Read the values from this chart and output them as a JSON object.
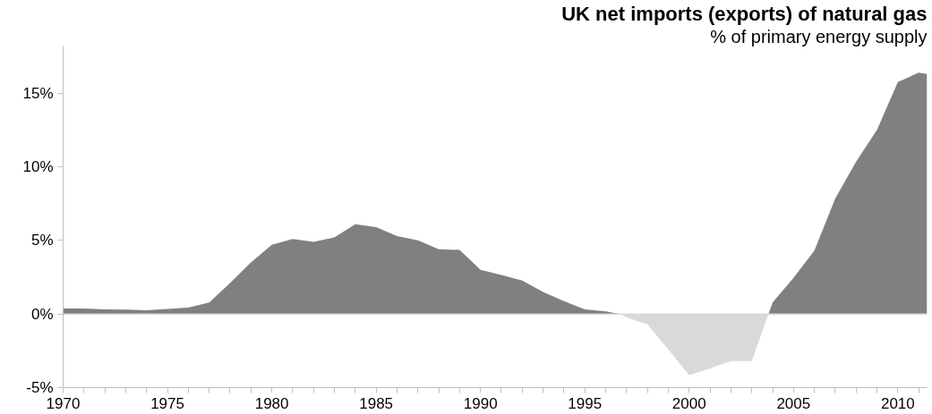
{
  "chart_data": {
    "type": "area",
    "title": "UK net imports (exports) of natural gas",
    "subtitle": "% of primary energy supply",
    "series": [
      {
        "color": "#808080",
        "x": [
          1970,
          1971,
          1972,
          1973,
          1974,
          1975,
          1976,
          1977,
          1978,
          1979,
          1980,
          1981,
          1982,
          1983,
          1984,
          1985,
          1986,
          1987,
          1988,
          1989,
          1990,
          1991,
          1992,
          1993,
          1994,
          1995,
          1996,
          1996.7,
          null,
          2003.8,
          2004,
          2005,
          2006,
          2007,
          2008,
          2009,
          2010,
          2011,
          2011.4
        ],
        "values": [
          0.37,
          0.37,
          0.32,
          0.3,
          0.26,
          0.35,
          0.43,
          0.78,
          2.1,
          3.5,
          4.7,
          5.1,
          4.9,
          5.2,
          6.1,
          5.9,
          5.3,
          5.0,
          4.4,
          4.35,
          3.0,
          2.65,
          2.27,
          1.5,
          0.87,
          0.32,
          0.17,
          0,
          null,
          0,
          0.78,
          2.45,
          4.3,
          7.85,
          10.35,
          12.5,
          15.75,
          16.4,
          16.3
        ]
      },
      {
        "color": "#d9d9d9",
        "x": [
          1996.7,
          1997,
          1998,
          1999,
          2000,
          2001,
          2002,
          2003,
          2003.8
        ],
        "values": [
          0,
          -0.24,
          -0.7,
          -2.4,
          -4.15,
          -3.7,
          -3.2,
          -3.2,
          0
        ]
      }
    ],
    "xlim": [
      1970,
      2011.4
    ],
    "ylim": [
      -5,
      18.2
    ],
    "xticks": [
      1970,
      {
        "value": 1971,
        "label": null
      },
      {
        "value": 1972,
        "label": null
      },
      {
        "value": 1973,
        "label": null
      },
      {
        "value": 1974,
        "label": null
      },
      1975,
      {
        "value": 1976,
        "label": null
      },
      {
        "value": 1977,
        "label": null
      },
      {
        "value": 1978,
        "label": null
      },
      {
        "value": 1979,
        "label": null
      },
      1980,
      {
        "value": 1981,
        "label": null
      },
      {
        "value": 1982,
        "label": null
      },
      {
        "value": 1983,
        "label": null
      },
      {
        "value": 1984,
        "label": null
      },
      1985,
      {
        "value": 1986,
        "label": null
      },
      {
        "value": 1987,
        "label": null
      },
      {
        "value": 1988,
        "label": null
      },
      {
        "value": 1989,
        "label": null
      },
      1990,
      {
        "value": 1991,
        "label": null
      },
      {
        "value": 1992,
        "label": null
      },
      {
        "value": 1993,
        "label": null
      },
      {
        "value": 1994,
        "label": null
      },
      1995,
      {
        "value": 1996,
        "label": null
      },
      {
        "value": 1997,
        "label": null
      },
      {
        "value": 1998,
        "label": null
      },
      {
        "value": 1999,
        "label": null
      },
      2000,
      {
        "value": 2001,
        "label": null
      },
      {
        "value": 2002,
        "label": null
      },
      {
        "value": 2003,
        "label": null
      },
      {
        "value": 2004,
        "label": null
      },
      2005,
      {
        "value": 2006,
        "label": null
      },
      {
        "value": 2007,
        "label": null
      },
      {
        "value": 2008,
        "label": null
      },
      {
        "value": 2009,
        "label": null
      },
      2010,
      {
        "value": 2011,
        "label": null
      }
    ],
    "yticks": [
      {
        "value": -5,
        "label": "-5%"
      },
      {
        "value": 0,
        "label": "0%"
      },
      {
        "value": 5,
        "label": "5%"
      },
      {
        "value": 10,
        "label": "10%"
      },
      {
        "value": 15,
        "label": "15%"
      }
    ],
    "ref_lines": [
      {
        "axis": "y",
        "value": 0,
        "color": "#d9d9d9"
      }
    ],
    "grid": false
  }
}
